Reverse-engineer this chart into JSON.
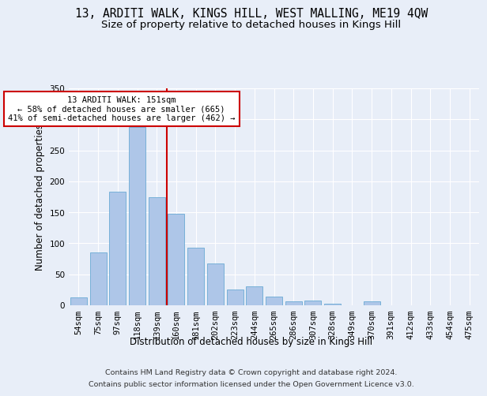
{
  "title": "13, ARDITI WALK, KINGS HILL, WEST MALLING, ME19 4QW",
  "subtitle": "Size of property relative to detached houses in Kings Hill",
  "xlabel": "Distribution of detached houses by size in Kings Hill",
  "ylabel": "Number of detached properties",
  "categories": [
    "54sqm",
    "75sqm",
    "97sqm",
    "118sqm",
    "139sqm",
    "160sqm",
    "181sqm",
    "202sqm",
    "223sqm",
    "244sqm",
    "265sqm",
    "286sqm",
    "307sqm",
    "328sqm",
    "349sqm",
    "370sqm",
    "391sqm",
    "412sqm",
    "433sqm",
    "454sqm",
    "475sqm"
  ],
  "values": [
    13,
    85,
    183,
    288,
    174,
    148,
    93,
    68,
    26,
    30,
    14,
    7,
    8,
    3,
    0,
    6,
    0,
    0,
    0,
    0,
    0
  ],
  "bar_color": "#aec6e8",
  "bar_edge_color": "#6aaad4",
  "vline_x_index": 4.5,
  "vline_color": "#cc0000",
  "annotation_line1": "13 ARDITI WALK: 151sqm",
  "annotation_line2": "← 58% of detached houses are smaller (665)",
  "annotation_line3": "41% of semi-detached houses are larger (462) →",
  "annotation_box_facecolor": "#ffffff",
  "annotation_box_edgecolor": "#cc0000",
  "footer_line1": "Contains HM Land Registry data © Crown copyright and database right 2024.",
  "footer_line2": "Contains public sector information licensed under the Open Government Licence v3.0.",
  "ylim": [
    0,
    350
  ],
  "yticks": [
    0,
    50,
    100,
    150,
    200,
    250,
    300,
    350
  ],
  "title_fontsize": 10.5,
  "subtitle_fontsize": 9.5,
  "axis_label_fontsize": 8.5,
  "tick_fontsize": 7.5,
  "annotation_fontsize": 7.5,
  "footer_fontsize": 6.8,
  "bg_color": "#e8eef8",
  "plot_bg_color": "#e8eef8"
}
